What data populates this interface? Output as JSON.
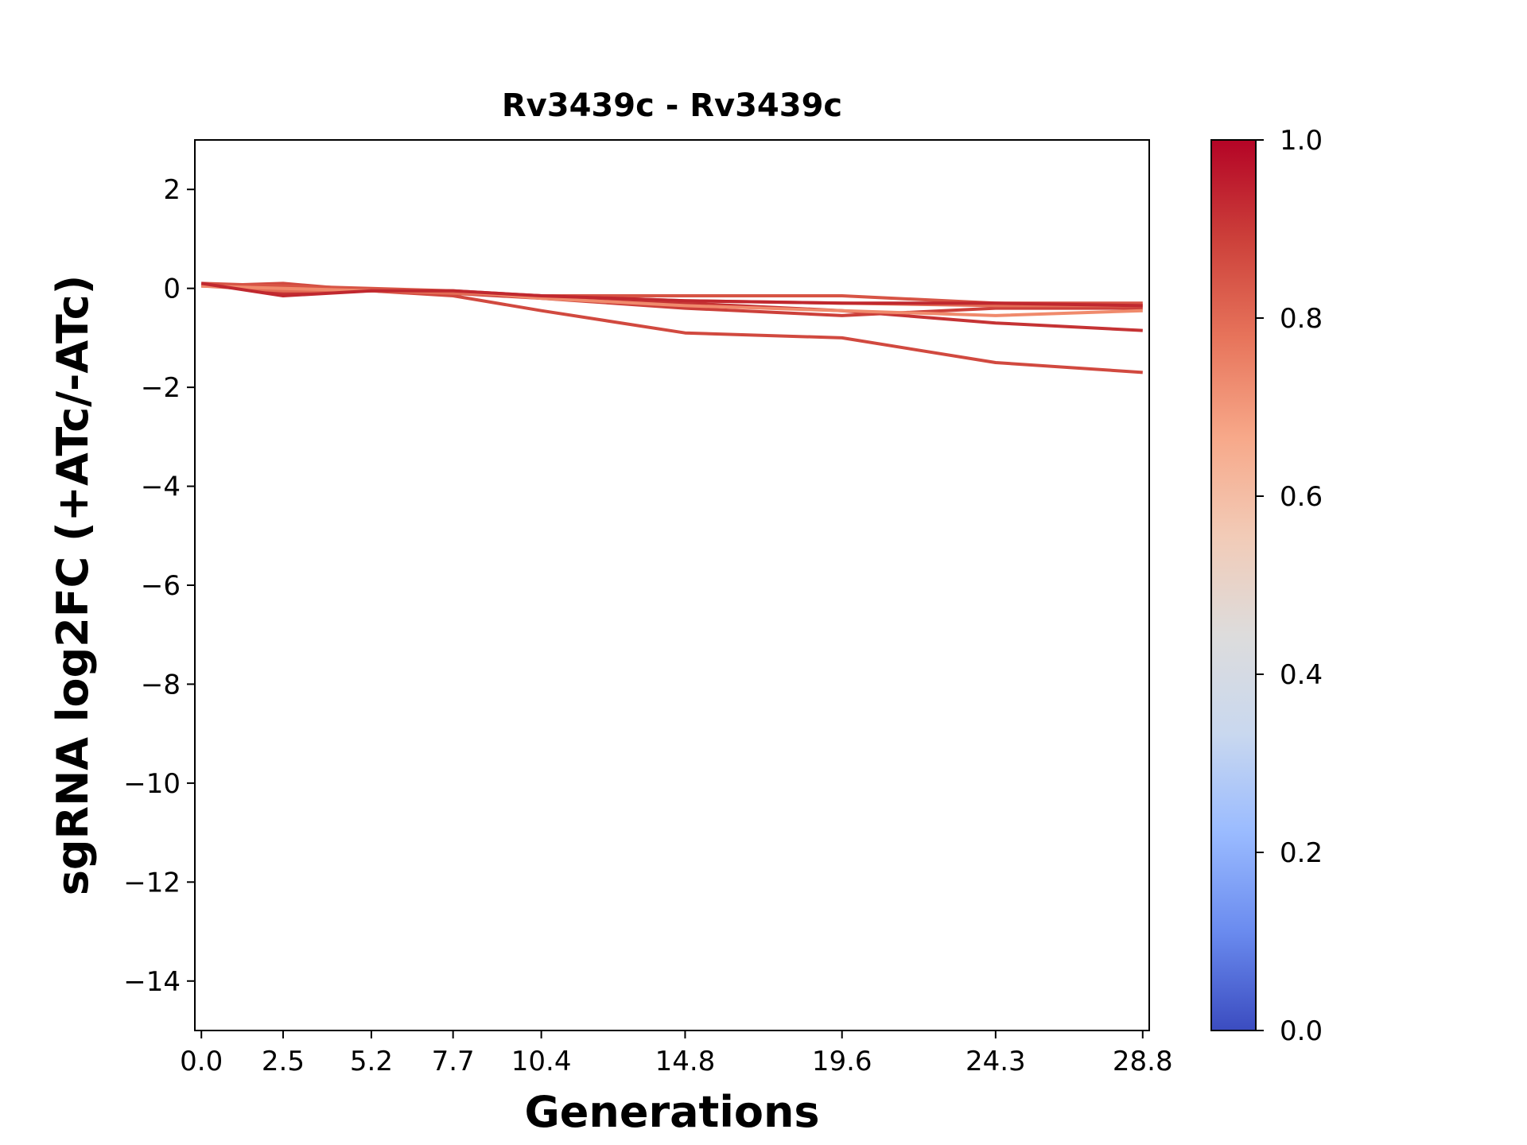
{
  "chart_data": {
    "type": "line",
    "title": "Rv3439c - Rv3439c",
    "xlabel": "Generations",
    "ylabel": "sgRNA log2FC (+ATc/-ATc)",
    "x": [
      0.0,
      2.5,
      5.2,
      7.7,
      10.4,
      14.8,
      19.6,
      24.3,
      28.8
    ],
    "x_tick_labels": [
      "0.0",
      "2.5",
      "5.2",
      "7.7",
      "10.4",
      "14.8",
      "19.6",
      "24.3",
      "28.8"
    ],
    "y_ticks": [
      2,
      0,
      -2,
      -4,
      -6,
      -8,
      -10,
      -12,
      -14
    ],
    "y_tick_labels": [
      "2",
      "0",
      "−2",
      "−4",
      "−6",
      "−8",
      "−10",
      "−12",
      "−14"
    ],
    "xlim": [
      -0.2,
      29.0
    ],
    "ylim": [
      -15,
      3
    ],
    "grid": false,
    "colormap": "coolwarm",
    "colorbar": {
      "range": [
        0.0,
        1.0
      ],
      "ticks": [
        0.0,
        0.2,
        0.4,
        0.6,
        0.8,
        1.0
      ],
      "tick_labels": [
        "0.0",
        "0.2",
        "0.4",
        "0.6",
        "0.8",
        "1.0"
      ],
      "stops": [
        "#3b4cc0",
        "#6a8bef",
        "#9abbff",
        "#c9d8ef",
        "#dddcdc",
        "#f2cbb7",
        "#f7a889",
        "#e7745b",
        "#cc403a",
        "#b40426"
      ]
    },
    "series": [
      {
        "color": "#d1493f",
        "values": [
          0.05,
          0.1,
          -0.05,
          -0.15,
          -0.45,
          -0.9,
          -1.0,
          -1.5,
          -1.7
        ]
      },
      {
        "color": "#c53334",
        "values": [
          0.1,
          -0.1,
          -0.05,
          -0.1,
          -0.15,
          -0.3,
          -0.45,
          -0.7,
          -0.85
        ]
      },
      {
        "color": "#cc403a",
        "values": [
          0.05,
          0.0,
          -0.05,
          -0.1,
          -0.2,
          -0.4,
          -0.55,
          -0.4,
          -0.4
        ]
      },
      {
        "color": "#d75445",
        "values": [
          0.1,
          0.05,
          0.0,
          -0.05,
          -0.15,
          -0.15,
          -0.15,
          -0.3,
          -0.3
        ]
      },
      {
        "color": "#e36c55",
        "values": [
          0.05,
          -0.05,
          -0.05,
          -0.1,
          -0.15,
          -0.25,
          -0.3,
          -0.35,
          -0.35
        ]
      },
      {
        "color": "#f08a6c",
        "values": [
          0.05,
          0.0,
          -0.05,
          -0.05,
          -0.2,
          -0.35,
          -0.45,
          -0.55,
          -0.45
        ]
      },
      {
        "color": "#c0282f",
        "values": [
          0.1,
          -0.15,
          -0.05,
          -0.05,
          -0.15,
          -0.25,
          -0.3,
          -0.3,
          -0.35
        ]
      }
    ]
  }
}
